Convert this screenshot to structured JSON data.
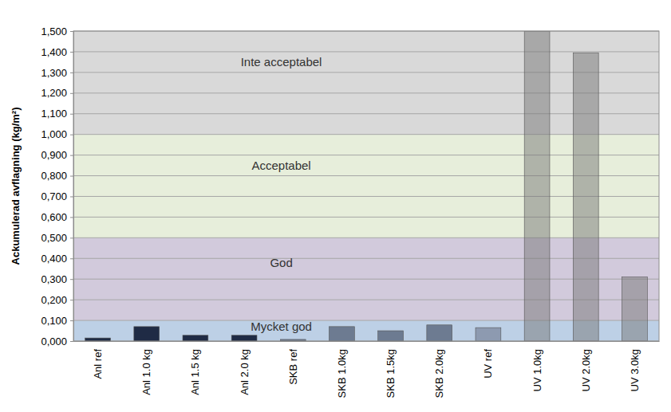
{
  "chart_data": {
    "type": "bar",
    "y_label": "Ackumulerad avflagning (kg/m²)",
    "categories": [
      "Anl ref",
      "Anl 1.0 kg",
      "Anl 1.5 kg",
      "Anl 2.0 kg",
      "SKB ref",
      "SKB 1.0kg",
      "SKB 1.5kg",
      "SKB 2.0kg",
      "UV ref",
      "UV 1.0kg",
      "UV 2.0kg",
      "UV 3.0kg"
    ],
    "values": [
      0.015,
      0.07,
      0.028,
      0.028,
      0.008,
      0.07,
      0.05,
      0.078,
      0.065,
      1.5,
      1.395,
      0.31
    ],
    "colors": [
      "#1f2b45",
      "#1f2b45",
      "#1f2b45",
      "#1f2b45",
      "#6d7b91",
      "#6d7b91",
      "#6d7b91",
      "#6d7b91",
      "#8d9ab0",
      "rgba(120,120,120,0.5)",
      "rgba(120,120,120,0.5)",
      "rgba(120,120,120,0.5)"
    ],
    "ylim": [
      0,
      1.5
    ],
    "yticks": [
      {
        "value": 0,
        "label": "0,000"
      },
      {
        "value": 0.1,
        "label": "0,100"
      },
      {
        "value": 0.2,
        "label": "0,200"
      },
      {
        "value": 0.3,
        "label": "0,300"
      },
      {
        "value": 0.4,
        "label": "0,400"
      },
      {
        "value": 0.5,
        "label": "0,500"
      },
      {
        "value": 0.6,
        "label": "0,600"
      },
      {
        "value": 0.7,
        "label": "0,700"
      },
      {
        "value": 0.8,
        "label": "0,800"
      },
      {
        "value": 0.9,
        "label": "0,900"
      },
      {
        "value": 1.0,
        "label": "1,000"
      },
      {
        "value": 1.1,
        "label": "1,100"
      },
      {
        "value": 1.2,
        "label": "1,200"
      },
      {
        "value": 1.3,
        "label": "1,300"
      },
      {
        "value": 1.4,
        "label": "1,400"
      },
      {
        "value": 1.5,
        "label": "1,500"
      }
    ],
    "grid": true,
    "annotations": [
      {
        "text": "Mycket god",
        "y0": 0,
        "y1": 0.1,
        "color": "#bdd0e6"
      },
      {
        "text": "God",
        "y0": 0.1,
        "y1": 0.5,
        "color": "#d2cadc"
      },
      {
        "text": "Acceptabel",
        "y0": 0.5,
        "y1": 1.0,
        "color": "#e7eedb"
      },
      {
        "text": "Inte acceptabel",
        "y0": 1.0,
        "y1": 1.5,
        "color": "#d9d9d9"
      }
    ]
  }
}
